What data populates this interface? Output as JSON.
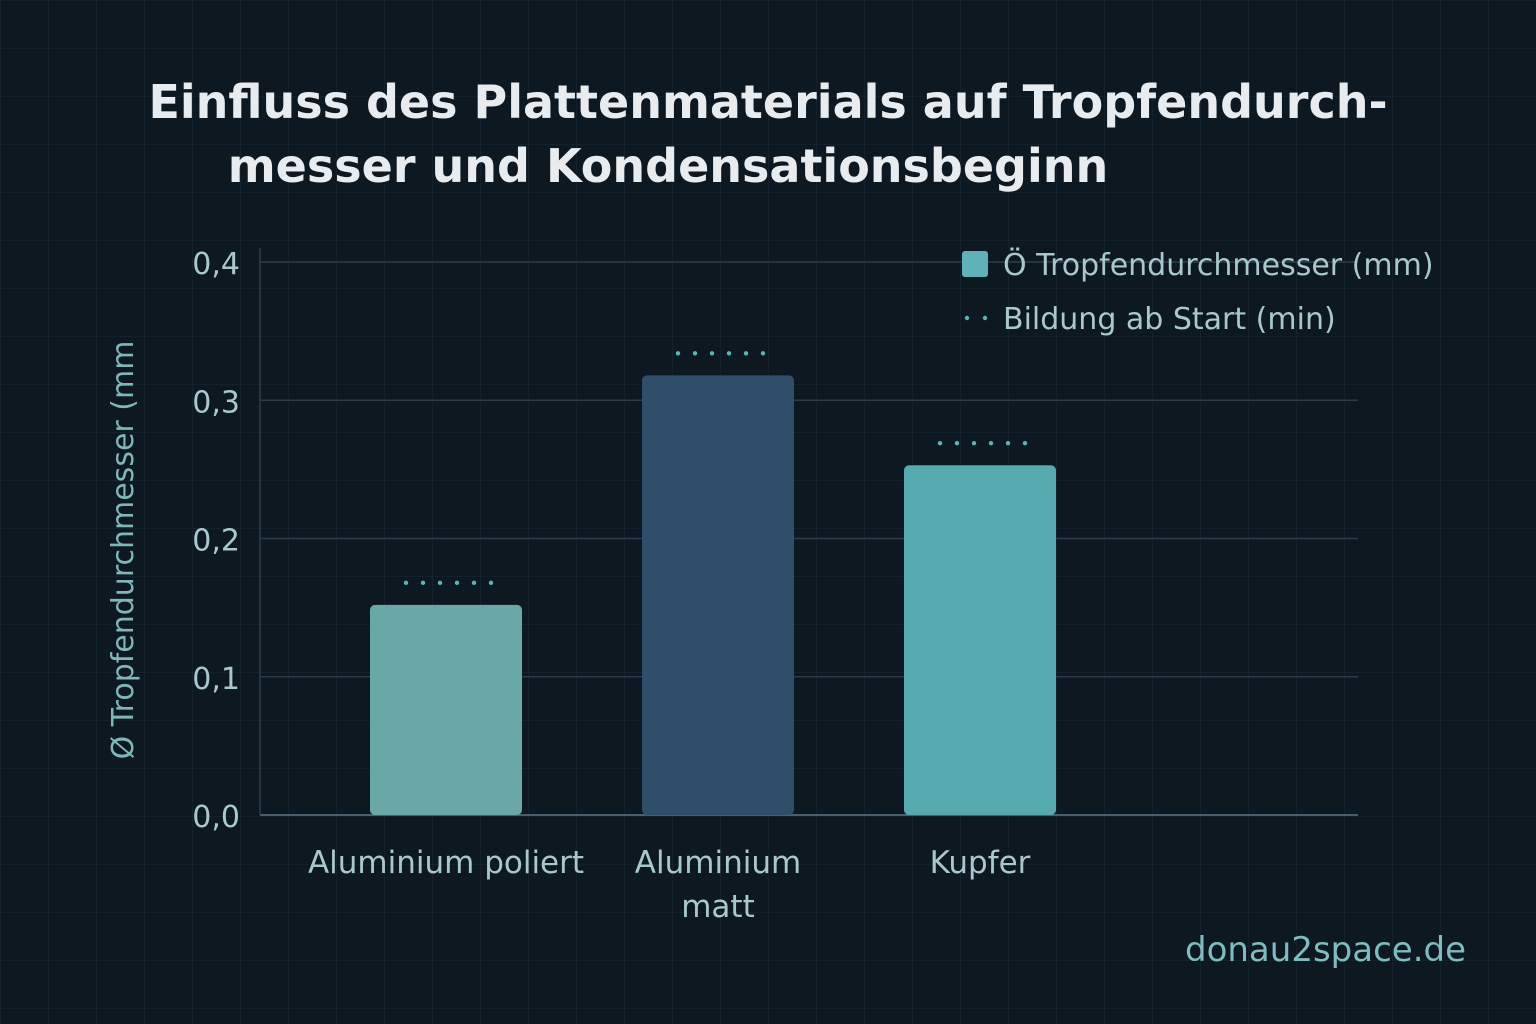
{
  "chart_data": {
    "type": "bar",
    "title_line1": "Einfluss des Plattenmaterials auf Tropfendurch-",
    "title_line2": "messer und Kondensationsbeginn",
    "ylabel": "Ø Tropfendurchmesser (mm",
    "ylim": [
      0,
      0.4
    ],
    "yticks": [
      "0,0",
      "0,1",
      "0,2",
      "0,3",
      "0,4"
    ],
    "categories": [
      [
        "Aluminium poliert"
      ],
      [
        "Aluminium",
        "matt"
      ],
      [
        "Kupfer"
      ]
    ],
    "series": [
      {
        "name": "Ö Tropfendurchmesser (mm)",
        "values": [
          0.152,
          0.318,
          0.253
        ]
      }
    ],
    "bar_colors": [
      "#6aa8a8",
      "#2f4e6a",
      "#57a9b0"
    ],
    "legend": [
      {
        "label": "Ö Tropfendurchmesser (mm)",
        "marker": "square",
        "color": "#5fb3b8"
      },
      {
        "label": "Bildung ab Start (min)",
        "marker": "dots",
        "color": "#5fb3b8"
      }
    ],
    "legend_position": "top-right",
    "grid": true
  },
  "footer": {
    "source": "donau2space.de"
  }
}
